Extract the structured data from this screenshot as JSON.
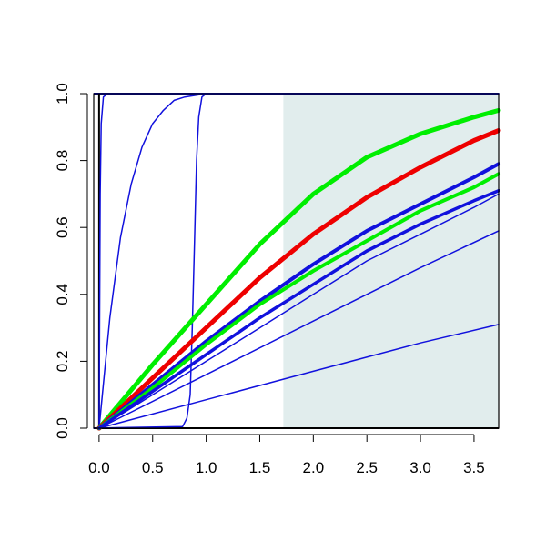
{
  "chart_data": {
    "type": "line",
    "title": "",
    "xlabel": "",
    "ylabel": "",
    "xlim": [
      -0.05,
      3.73
    ],
    "ylim": [
      0,
      1
    ],
    "x_ticks": [
      0.0,
      0.5,
      1.0,
      1.5,
      2.0,
      2.5,
      3.0,
      3.5
    ],
    "x_tick_labels": [
      "0.0",
      "0.5",
      "1.0",
      "1.5",
      "2.0",
      "2.5",
      "3.0",
      "3.5"
    ],
    "y_ticks": [
      0.0,
      0.2,
      0.4,
      0.6,
      0.8,
      1.0
    ],
    "y_tick_labels": [
      "0.0",
      "0.2",
      "0.4",
      "0.6",
      "0.8",
      "1.0"
    ],
    "grid": false,
    "legend": "none",
    "shaded_region": {
      "x_from": 1.72,
      "x_to": 3.73,
      "y_from": 0,
      "y_to": 1,
      "color": "#e1eded"
    },
    "colors": {
      "green": "#00ee00",
      "red": "#ee0000",
      "blue": "#1111dd",
      "black": "#000000"
    },
    "series": [
      {
        "color": "#1111dd",
        "width": 1.5,
        "x": [
          0,
          0.01,
          0.02,
          0.04,
          0.08,
          3.73
        ],
        "y": [
          0,
          0.7,
          0.91,
          0.99,
          1.0,
          1.0
        ]
      },
      {
        "color": "#1111dd",
        "width": 1.5,
        "x": [
          0,
          0.1,
          0.2,
          0.3,
          0.4,
          0.5,
          0.6,
          0.7,
          0.8,
          1.0,
          3.73
        ],
        "y": [
          0,
          0.33,
          0.57,
          0.73,
          0.84,
          0.91,
          0.95,
          0.98,
          0.99,
          1.0,
          1.0
        ]
      },
      {
        "color": "#1111dd",
        "width": 1.5,
        "x": [
          -0.05,
          0.78,
          0.82,
          0.85,
          0.87,
          0.89,
          0.91,
          0.93,
          0.96,
          1.0,
          3.73
        ],
        "y": [
          0,
          0.005,
          0.03,
          0.1,
          0.3,
          0.55,
          0.8,
          0.93,
          0.99,
          1.0,
          1.0
        ]
      },
      {
        "color": "#00ee00",
        "width": 5,
        "x": [
          0,
          0.5,
          1.0,
          1.5,
          2.0,
          2.5,
          3.0,
          3.5,
          3.73
        ],
        "y": [
          0,
          0.19,
          0.37,
          0.55,
          0.7,
          0.81,
          0.88,
          0.93,
          0.95
        ]
      },
      {
        "color": "#ee0000",
        "width": 5,
        "x": [
          0,
          0.5,
          1.0,
          1.5,
          2.0,
          2.5,
          3.0,
          3.5,
          3.73
        ],
        "y": [
          0,
          0.15,
          0.3,
          0.45,
          0.58,
          0.69,
          0.78,
          0.86,
          0.89
        ]
      },
      {
        "color": "#1111dd",
        "width": 4,
        "x": [
          0,
          0.5,
          1.0,
          1.5,
          2.0,
          2.5,
          3.0,
          3.5,
          3.73
        ],
        "y": [
          0,
          0.13,
          0.26,
          0.38,
          0.49,
          0.59,
          0.67,
          0.75,
          0.79
        ]
      },
      {
        "color": "#00ee00",
        "width": 4,
        "x": [
          0,
          0.5,
          1.0,
          1.5,
          2.0,
          2.5,
          3.0,
          3.5,
          3.73
        ],
        "y": [
          0,
          0.12,
          0.25,
          0.37,
          0.47,
          0.56,
          0.65,
          0.72,
          0.76
        ]
      },
      {
        "color": "#1111dd",
        "width": 3.5,
        "x": [
          0,
          0.5,
          1.0,
          1.5,
          2.0,
          2.5,
          3.0,
          3.5,
          3.73
        ],
        "y": [
          0,
          0.11,
          0.22,
          0.33,
          0.43,
          0.53,
          0.61,
          0.68,
          0.71
        ]
      },
      {
        "color": "#1111dd",
        "width": 1.5,
        "x": [
          0,
          0.5,
          1.0,
          1.5,
          2.0,
          2.5,
          3.0,
          3.5,
          3.73
        ],
        "y": [
          0,
          0.1,
          0.2,
          0.3,
          0.4,
          0.5,
          0.58,
          0.66,
          0.7
        ]
      },
      {
        "color": "#1111dd",
        "width": 1.5,
        "x": [
          0,
          1.0,
          2.0,
          3.0,
          3.73
        ],
        "y": [
          0,
          0.16,
          0.32,
          0.48,
          0.59
        ]
      },
      {
        "color": "#1111dd",
        "width": 1.5,
        "x": [
          0,
          1.0,
          2.0,
          3.0,
          3.73
        ],
        "y": [
          0,
          0.085,
          0.17,
          0.255,
          0.31
        ]
      }
    ],
    "reference_lines": [
      {
        "orientation": "horizontal",
        "value": 1,
        "color": "#1111dd"
      },
      {
        "orientation": "horizontal",
        "value": 0,
        "color": "#000000"
      },
      {
        "orientation": "vertical",
        "value": 0,
        "color": "#000000"
      }
    ]
  }
}
